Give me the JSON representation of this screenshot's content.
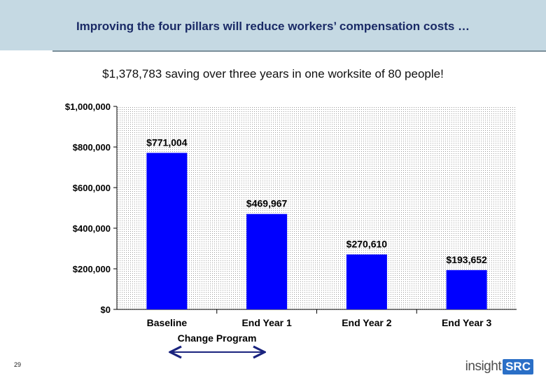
{
  "slide": {
    "title": "Improving the four pillars will reduce workers’ compensation costs …",
    "subtitle": "$1,378,783 saving over three years in one worksite of 80 people!",
    "page_number": "29",
    "logo": {
      "word": "insight",
      "box": "SRC"
    },
    "colors": {
      "title_band": "#c5d9e3",
      "bar": "#0000ff",
      "arrow": "#1a237e"
    }
  },
  "annotation": {
    "label": "Change Program",
    "arrow": "double-headed arrow spanning Baseline to End Year 1"
  },
  "chart_data": {
    "type": "bar",
    "categories": [
      "Baseline",
      "End Year 1",
      "End Year 2",
      "End Year 3"
    ],
    "values": [
      771004,
      469967,
      270610,
      193652
    ],
    "data_labels": [
      "$771,004",
      "$469,967",
      "$270,610",
      "$193,652"
    ],
    "yticks": [
      0,
      200000,
      400000,
      600000,
      800000,
      1000000
    ],
    "ytick_labels": [
      "$0",
      "$200,000",
      "$400,000",
      "$600,000",
      "$800,000",
      "$1,000,000"
    ],
    "ylim": [
      0,
      1000000
    ],
    "grid": true,
    "title": "",
    "xlabel": "",
    "ylabel": ""
  }
}
